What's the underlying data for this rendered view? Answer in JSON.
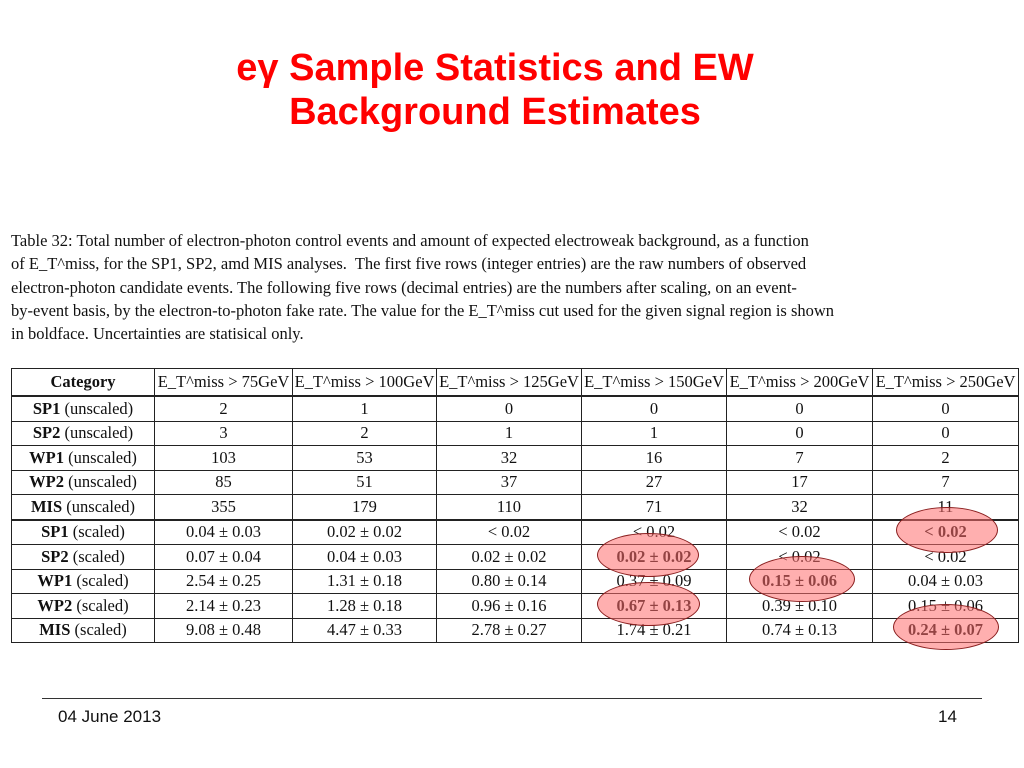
{
  "title": {
    "line1": "eγ Sample Statistics and EW",
    "line2": "Background Estimates"
  },
  "caption": {
    "line1": "Table 32: Total number of electron-photon control events and amount of expected electroweak background, as a function",
    "line2": "of E_T^miss, for the SP1, SP2, amd MIS analyses.  The first five rows (integer entries) are the raw numbers of observed",
    "line3": "electron-photon candidate events. The following five rows (decimal entries) are the numbers after scaling, on an event-",
    "line4": "by-event basis, by the electron-to-photon fake rate. The value for the E_T^miss cut used for the given signal region is shown",
    "line5": "in boldface. Uncertainties are statisical only."
  },
  "table": {
    "headers": [
      "Category",
      "E_T^miss > 75GeV",
      "E_T^miss > 100GeV",
      "E_T^miss > 125GeV",
      "E_T^miss > 150GeV",
      "E_T^miss > 200GeV",
      "E_T^miss > 250GeV"
    ],
    "raw_rows": [
      {
        "name": "SP1",
        "qual": " (unscaled)",
        "cells": [
          "2",
          "1",
          "0",
          "0",
          "0",
          "0"
        ]
      },
      {
        "name": "SP2",
        "qual": " (unscaled)",
        "cells": [
          "3",
          "2",
          "1",
          "1",
          "0",
          "0"
        ]
      },
      {
        "name": "WP1",
        "qual": " (unscaled)",
        "cells": [
          "103",
          "53",
          "32",
          "16",
          "7",
          "2"
        ]
      },
      {
        "name": "WP2",
        "qual": " (unscaled)",
        "cells": [
          "85",
          "51",
          "37",
          "27",
          "17",
          "7"
        ]
      },
      {
        "name": "MIS",
        "qual": " (unscaled)",
        "cells": [
          "355",
          "179",
          "110",
          "71",
          "32",
          "11"
        ]
      }
    ],
    "scaled_rows": [
      {
        "name": "SP1",
        "qual": " (scaled)",
        "cells": [
          "0.04 ± 0.03",
          "0.02 ± 0.02",
          "< 0.02",
          "< 0.02",
          "< 0.02",
          "< 0.02"
        ]
      },
      {
        "name": "SP2",
        "qual": " (scaled)",
        "cells": [
          "0.07 ± 0.04",
          "0.04 ± 0.03",
          "0.02 ± 0.02",
          "0.02 ± 0.02",
          "< 0.02",
          "< 0.02"
        ]
      },
      {
        "name": "WP1",
        "qual": " (scaled)",
        "cells": [
          "2.54 ± 0.25",
          "1.31 ± 0.18",
          "0.80 ± 0.14",
          "0.37 ± 0.09",
          "0.15 ± 0.06",
          "0.04 ± 0.03"
        ]
      },
      {
        "name": "WP2",
        "qual": " (scaled)",
        "cells": [
          "2.14 ± 0.23",
          "1.28 ± 0.18",
          "0.96 ± 0.16",
          "0.67 ± 0.13",
          "0.39 ± 0.10",
          "0.15 ± 0.06"
        ]
      },
      {
        "name": "MIS",
        "qual": " (scaled)",
        "cells": [
          "9.08 ± 0.48",
          "4.47 ± 0.33",
          "2.78 ± 0.27",
          "1.74 ± 0.21",
          "0.74 ± 0.13",
          "0.24 ± 0.07"
        ]
      }
    ]
  },
  "footer": {
    "date": "04 June 2013",
    "page": "14"
  },
  "colors": {
    "title": "#ff0000",
    "highlight_fill": "#ff6e6e",
    "highlight_stroke": "#8a1f1f"
  }
}
